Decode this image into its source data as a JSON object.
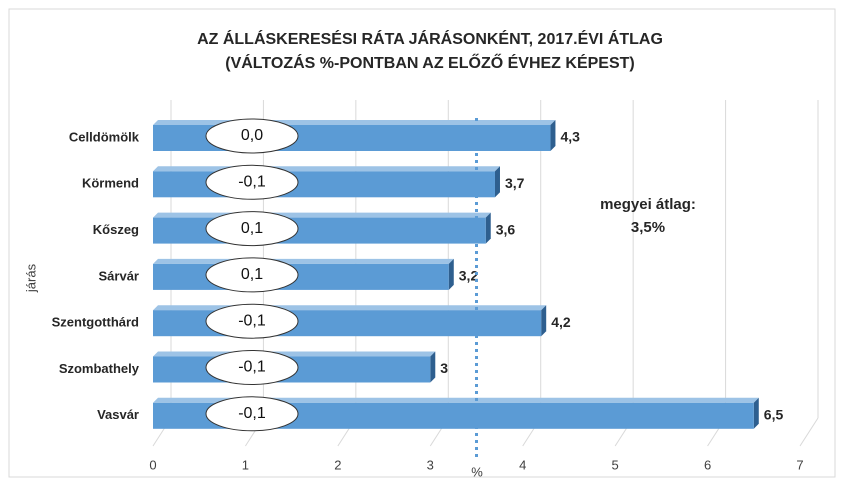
{
  "chart_data": {
    "type": "bar",
    "orientation": "horizontal",
    "title": [
      "AZ ÁLLÁSKERESÉSI RÁTA JÁRÁSONKÉNT, 2017.ÉVI ÁTLAG",
      "(VÁLTOZÁS %-PONTBAN AZ ELŐZŐ ÉVHEZ KÉPEST)"
    ],
    "x_label": "%",
    "y_label": "járás",
    "categories": [
      "Celldömölk",
      "Körmend",
      "Kőszeg",
      "Sárvár",
      "Szentgotthárd",
      "Szombathely",
      "Vasvár"
    ],
    "values": [
      4.3,
      3.7,
      3.6,
      3.2,
      4.2,
      3,
      6.5
    ],
    "value_labels": [
      "4,3",
      "3,7",
      "3,6",
      "3,2",
      "4,2",
      "3",
      "6,5"
    ],
    "change_labels": [
      "0,0",
      "-0,1",
      "0,1",
      "0,1",
      "-0,1",
      "-0,1",
      "-0,1"
    ],
    "color": "#5b9bd5",
    "average": 3.5,
    "average_label": [
      "megyei átlag:",
      "3,5%"
    ],
    "xlim": [
      0,
      7
    ],
    "xticks": [
      0,
      1,
      2,
      3,
      4,
      5,
      6,
      7
    ],
    "grid": true
  }
}
